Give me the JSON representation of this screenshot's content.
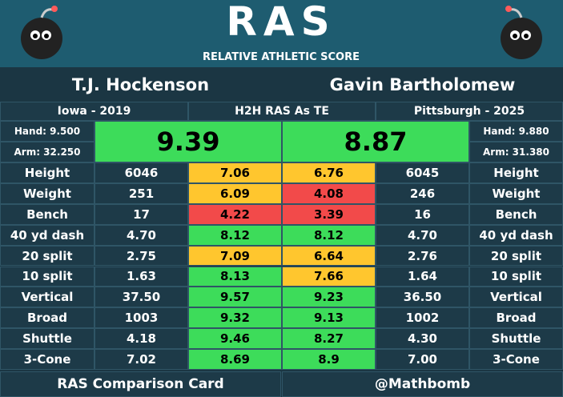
{
  "header": {
    "logo": "RAS",
    "tagline": "RELATIVE ATHLETIC SCORE"
  },
  "players": [
    {
      "name": "T.J. Hockenson",
      "school": "Iowa - 2019",
      "hand": "Hand: 9.500",
      "arm": "Arm: 32.250",
      "ras": "9.39",
      "ras_color": "#3ddc5a"
    },
    {
      "name": "Gavin Bartholomew",
      "school": "Pittsburgh - 2025",
      "hand": "Hand: 9.880",
      "arm": "Arm: 31.380",
      "ras": "8.87",
      "ras_color": "#3ddc5a"
    }
  ],
  "comparison_title": "H2H RAS As TE",
  "table": {
    "rows": [
      {
        "label": "Height",
        "p1": "6046",
        "p1_score": "7.06",
        "p1_color": "#ffc62e",
        "p2_score": "6.76",
        "p2_color": "#ffc62e",
        "p2": "6045"
      },
      {
        "label": "Weight",
        "p1": "251",
        "p1_score": "6.09",
        "p1_color": "#ffc62e",
        "p2_score": "4.08",
        "p2_color": "#f24a4a",
        "p2": "246"
      },
      {
        "label": "Bench",
        "p1": "17",
        "p1_score": "4.22",
        "p1_color": "#f24a4a",
        "p2_score": "3.39",
        "p2_color": "#f24a4a",
        "p2": "16"
      },
      {
        "label": "40 yd dash",
        "p1": "4.70",
        "p1_score": "8.12",
        "p1_color": "#3ddc5a",
        "p2_score": "8.12",
        "p2_color": "#3ddc5a",
        "p2": "4.70"
      },
      {
        "label": "20 split",
        "p1": "2.75",
        "p1_score": "7.09",
        "p1_color": "#ffc62e",
        "p2_score": "6.64",
        "p2_color": "#ffc62e",
        "p2": "2.76"
      },
      {
        "label": "10 split",
        "p1": "1.63",
        "p1_score": "8.13",
        "p1_color": "#3ddc5a",
        "p2_score": "7.66",
        "p2_color": "#ffc62e",
        "p2": "1.64"
      },
      {
        "label": "Vertical",
        "p1": "37.50",
        "p1_score": "9.57",
        "p1_color": "#3ddc5a",
        "p2_score": "9.23",
        "p2_color": "#3ddc5a",
        "p2": "36.50"
      },
      {
        "label": "Broad",
        "p1": "1003",
        "p1_score": "9.32",
        "p1_color": "#3ddc5a",
        "p2_score": "9.13",
        "p2_color": "#3ddc5a",
        "p2": "1002"
      },
      {
        "label": "Shuttle",
        "p1": "4.18",
        "p1_score": "9.46",
        "p1_color": "#3ddc5a",
        "p2_score": "8.27",
        "p2_color": "#3ddc5a",
        "p2": "4.30"
      },
      {
        "label": "3-Cone",
        "p1": "7.02",
        "p1_score": "8.69",
        "p1_color": "#3ddc5a",
        "p2_score": "8.9",
        "p2_color": "#3ddc5a",
        "p2": "7.00"
      }
    ]
  },
  "footer": {
    "left": "RAS Comparison Card",
    "right": "@Mathbomb"
  }
}
